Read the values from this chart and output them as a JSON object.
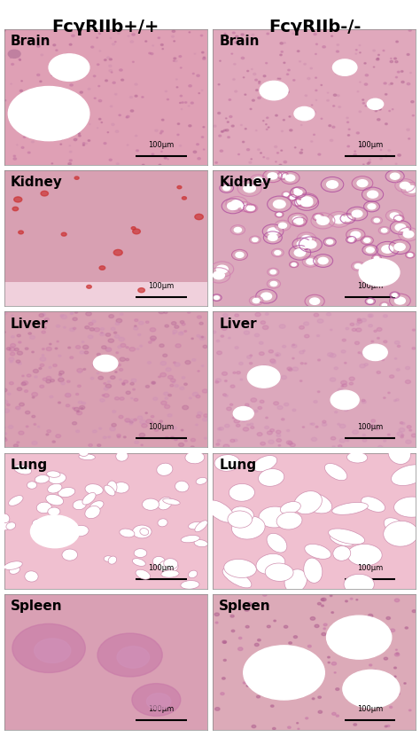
{
  "title_left": "FcγRIIb+/+",
  "title_right": "FcγRIIb-/-",
  "rows": [
    "Brain",
    "Kidney",
    "Liver",
    "Lung",
    "Spleen"
  ],
  "n_cols": 2,
  "n_rows": 5,
  "scale_bar_text": "100μm",
  "bg_color": "#ffffff",
  "header_fontsize": 14,
  "label_fontsize": 11,
  "scale_fontsize": 6,
  "label_color": "#000000",
  "header_color": "#000000",
  "cell_colors": [
    [
      "#e8a8b8",
      "#e8aab8"
    ],
    [
      "#e0a0b0",
      "#e0a5b5"
    ],
    [
      "#e5a5b5",
      "#e8aab8"
    ],
    [
      "#e8b0c0",
      "#e8b0c0"
    ],
    [
      "#e8a8b8",
      "#e8aab8"
    ]
  ],
  "panel_bg_brain_l": "#e8b0c5",
  "panel_bg_brain_r": "#ebb5c8",
  "panel_bg_kidney_l": "#e8a8b8",
  "panel_bg_kidney_r": "#e8afc0",
  "panel_bg_liver_l": "#e8a5b5",
  "panel_bg_liver_r": "#ebb0c0",
  "panel_bg_lung_l": "#eebbcc",
  "panel_bg_lung_r": "#eebbcc",
  "panel_bg_spleen_l": "#e8a8b8",
  "panel_bg_spleen_r": "#edb5c5",
  "border_color": "#888888",
  "border_lw": 0.5,
  "fig_width": 4.74,
  "fig_height": 8.31,
  "dpi": 100
}
